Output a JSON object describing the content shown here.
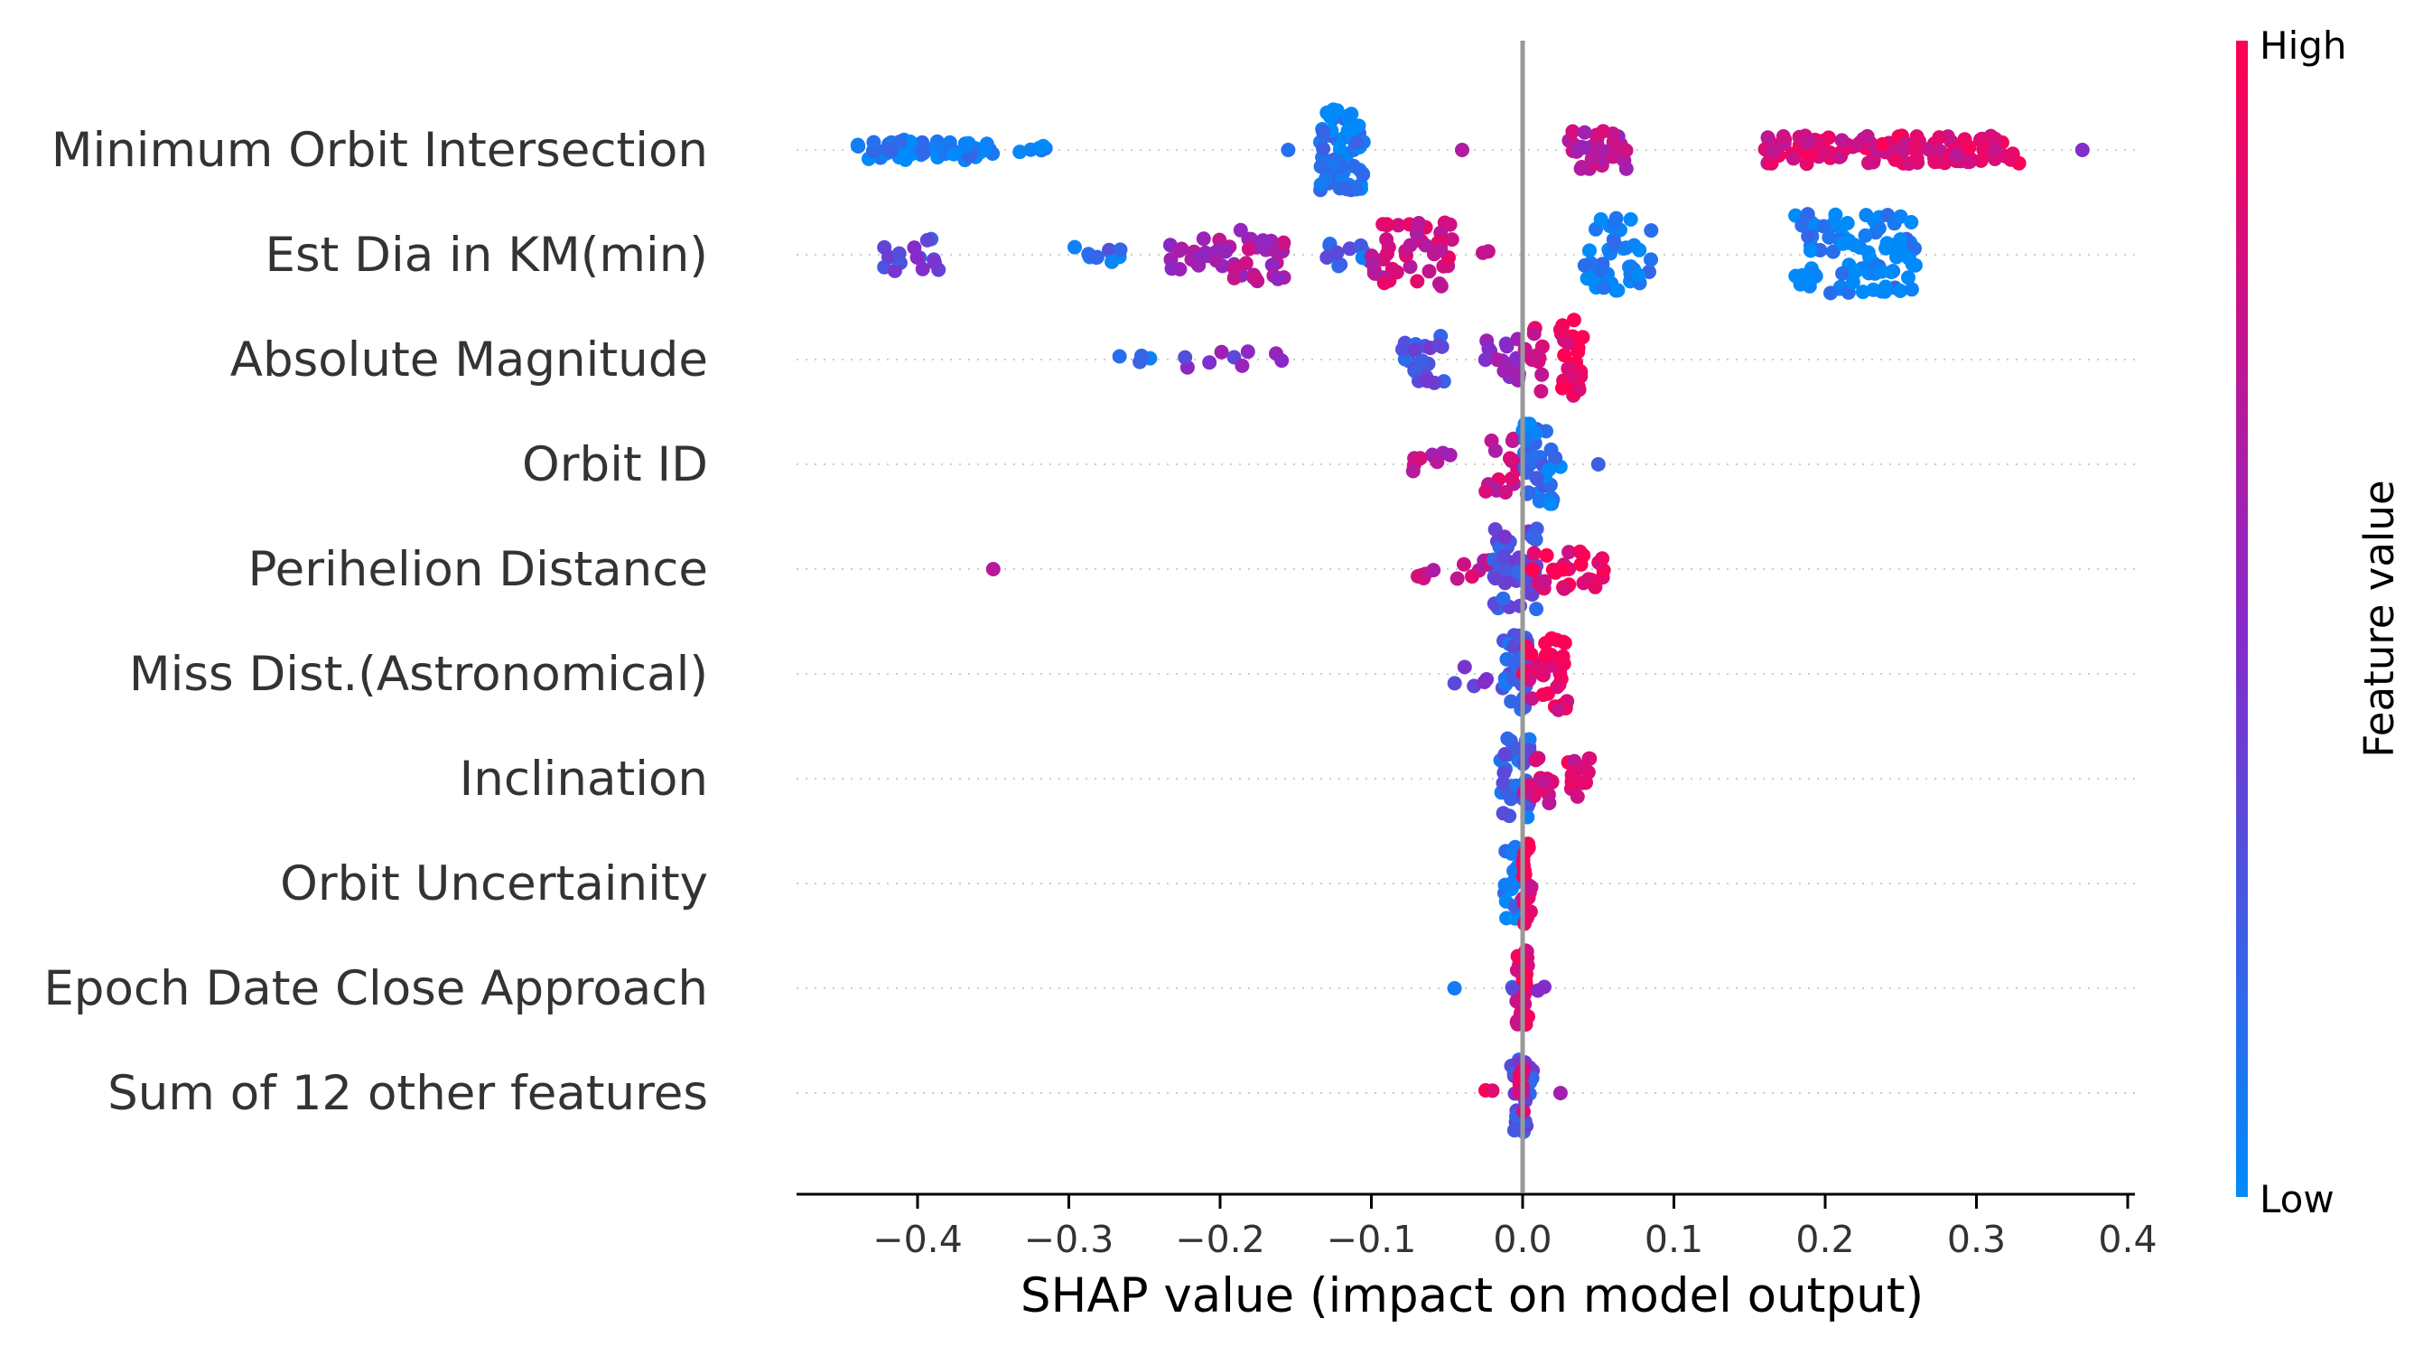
{
  "chart_data": {
    "type": "scatter",
    "subtype": "shap-beeswarm",
    "xlabel": "SHAP value (impact on model output)",
    "xlim": [
      -0.48,
      0.4
    ],
    "xticks": [
      -0.4,
      -0.3,
      -0.2,
      -0.1,
      0.0,
      0.1,
      0.2,
      0.3,
      0.4
    ],
    "xtick_labels": [
      "−0.4",
      "−0.3",
      "−0.2",
      "−0.1",
      "0.0",
      "0.1",
      "0.2",
      "0.3",
      "0.4"
    ],
    "zero_line": 0.0,
    "colorbar": {
      "title": "Feature value",
      "high_label": "High",
      "low_label": "Low",
      "low_color": "#008bfb",
      "mid_color": "#8a28c8",
      "high_color": "#ff0052"
    },
    "features": [
      {
        "name": "Minimum Orbit Intersection",
        "clusters": [
          {
            "x": [
              -0.44,
              -0.35
            ],
            "v": 0.05,
            "n": 60,
            "spread": 0.25
          },
          {
            "x": [
              -0.34,
              -0.31
            ],
            "v": 0.08,
            "n": 6,
            "spread": 0.1
          },
          {
            "x": [
              -0.155,
              -0.155
            ],
            "v": 0.1,
            "n": 1,
            "spread": 0
          },
          {
            "x": [
              -0.135,
              -0.105
            ],
            "v": 0.1,
            "n": 60,
            "spread": 1.0
          },
          {
            "x": [
              -0.04,
              -0.04
            ],
            "v": 0.6,
            "n": 1,
            "spread": 0
          },
          {
            "x": [
              0.03,
              0.07
            ],
            "v": 0.7,
            "n": 35,
            "spread": 0.5
          },
          {
            "x": [
              0.16,
              0.33
            ],
            "v": 0.85,
            "n": 130,
            "spread": 0.35
          },
          {
            "x": [
              0.37,
              0.37
            ],
            "v": 0.5,
            "n": 1,
            "spread": 0
          }
        ]
      },
      {
        "name": "Est Dia in KM(min)",
        "clusters": [
          {
            "x": [
              -0.425,
              -0.385
            ],
            "v": 0.35,
            "n": 16,
            "spread": 0.4
          },
          {
            "x": [
              -0.3,
              -0.265
            ],
            "v": 0.15,
            "n": 10,
            "spread": 0.2
          },
          {
            "x": [
              -0.235,
              -0.195
            ],
            "v": 0.55,
            "n": 18,
            "spread": 0.4
          },
          {
            "x": [
              -0.205,
              -0.155
            ],
            "v": 0.65,
            "n": 40,
            "spread": 0.7
          },
          {
            "x": [
              -0.13,
              -0.1
            ],
            "v": 0.2,
            "n": 12,
            "spread": 0.3
          },
          {
            "x": [
              -0.1,
              -0.045
            ],
            "v": 0.8,
            "n": 45,
            "spread": 0.8
          },
          {
            "x": [
              -0.03,
              -0.02
            ],
            "v": 0.6,
            "n": 2,
            "spread": 0.1
          },
          {
            "x": [
              0.04,
              0.085
            ],
            "v": 0.05,
            "n": 45,
            "spread": 0.9
          },
          {
            "x": [
              0.18,
              0.26
            ],
            "v": 0.05,
            "n": 90,
            "spread": 1.0
          }
        ]
      },
      {
        "name": "Absolute Magnitude",
        "clusters": [
          {
            "x": [
              -0.27,
              -0.245
            ],
            "v": 0.2,
            "n": 4,
            "spread": 0.1
          },
          {
            "x": [
              -0.225,
              -0.155
            ],
            "v": 0.45,
            "n": 9,
            "spread": 0.2
          },
          {
            "x": [
              -0.08,
              -0.05
            ],
            "v": 0.3,
            "n": 22,
            "spread": 0.6
          },
          {
            "x": [
              -0.025,
              0.0
            ],
            "v": 0.5,
            "n": 18,
            "spread": 0.6
          },
          {
            "x": [
              0.0,
              0.015
            ],
            "v": 0.85,
            "n": 12,
            "spread": 0.8
          },
          {
            "x": [
              0.025,
              0.04
            ],
            "v": 0.95,
            "n": 30,
            "spread": 1.0
          }
        ]
      },
      {
        "name": "Orbit ID",
        "clusters": [
          {
            "x": [
              -0.075,
              -0.045
            ],
            "v": 0.7,
            "n": 10,
            "spread": 0.3
          },
          {
            "x": [
              -0.025,
              0.0
            ],
            "v": 0.75,
            "n": 16,
            "spread": 0.7
          },
          {
            "x": [
              0.0,
              0.025
            ],
            "v": 0.1,
            "n": 35,
            "spread": 1.0
          },
          {
            "x": [
              0.05,
              0.05
            ],
            "v": 0.1,
            "n": 1,
            "spread": 0
          }
        ]
      },
      {
        "name": "Perihelion Distance",
        "clusters": [
          {
            "x": [
              -0.35,
              -0.35
            ],
            "v": 0.7,
            "n": 1,
            "spread": 0
          },
          {
            "x": [
              -0.07,
              -0.02
            ],
            "v": 0.75,
            "n": 12,
            "spread": 0.3
          },
          {
            "x": [
              -0.02,
              0.01
            ],
            "v": 0.3,
            "n": 40,
            "spread": 1.0
          },
          {
            "x": [
              0.0,
              0.055
            ],
            "v": 0.9,
            "n": 30,
            "spread": 0.5
          }
        ]
      },
      {
        "name": "Miss Dist.(Astronomical)",
        "clusters": [
          {
            "x": [
              -0.045,
              -0.02
            ],
            "v": 0.4,
            "n": 5,
            "spread": 0.3
          },
          {
            "x": [
              -0.015,
              0.005
            ],
            "v": 0.2,
            "n": 30,
            "spread": 1.0
          },
          {
            "x": [
              0.0,
              0.03
            ],
            "v": 0.9,
            "n": 40,
            "spread": 0.9
          }
        ]
      },
      {
        "name": "Inclination",
        "clusters": [
          {
            "x": [
              -0.015,
              0.005
            ],
            "v": 0.2,
            "n": 35,
            "spread": 1.0
          },
          {
            "x": [
              0.0,
              0.02
            ],
            "v": 0.8,
            "n": 15,
            "spread": 0.6
          },
          {
            "x": [
              0.03,
              0.045
            ],
            "v": 0.85,
            "n": 14,
            "spread": 0.5
          }
        ]
      },
      {
        "name": "Orbit Uncertainity",
        "clusters": [
          {
            "x": [
              -0.012,
              0.0
            ],
            "v": 0.1,
            "n": 20,
            "spread": 0.9
          },
          {
            "x": [
              0.0,
              0.006
            ],
            "v": 0.9,
            "n": 20,
            "spread": 1.0
          }
        ]
      },
      {
        "name": "Epoch Date Close Approach",
        "clusters": [
          {
            "x": [
              -0.045,
              -0.045
            ],
            "v": 0.1,
            "n": 1,
            "spread": 0
          },
          {
            "x": [
              -0.01,
              -0.005
            ],
            "v": 0.2,
            "n": 2,
            "spread": 0.1
          },
          {
            "x": [
              -0.004,
              0.004
            ],
            "v": 0.9,
            "n": 30,
            "spread": 1.0
          },
          {
            "x": [
              0.01,
              0.015
            ],
            "v": 0.6,
            "n": 2,
            "spread": 0.1
          }
        ]
      },
      {
        "name": "Sum of 12 other features",
        "clusters": [
          {
            "x": [
              -0.025,
              -0.02
            ],
            "v": 0.95,
            "n": 2,
            "spread": 0.1
          },
          {
            "x": [
              -0.008,
              0.008
            ],
            "v": 0.3,
            "n": 30,
            "spread": 1.0
          },
          {
            "x": [
              -0.003,
              0.003
            ],
            "v": 0.9,
            "n": 10,
            "spread": 0.6
          },
          {
            "x": [
              0.025,
              0.025
            ],
            "v": 0.5,
            "n": 1,
            "spread": 0
          }
        ]
      }
    ]
  }
}
